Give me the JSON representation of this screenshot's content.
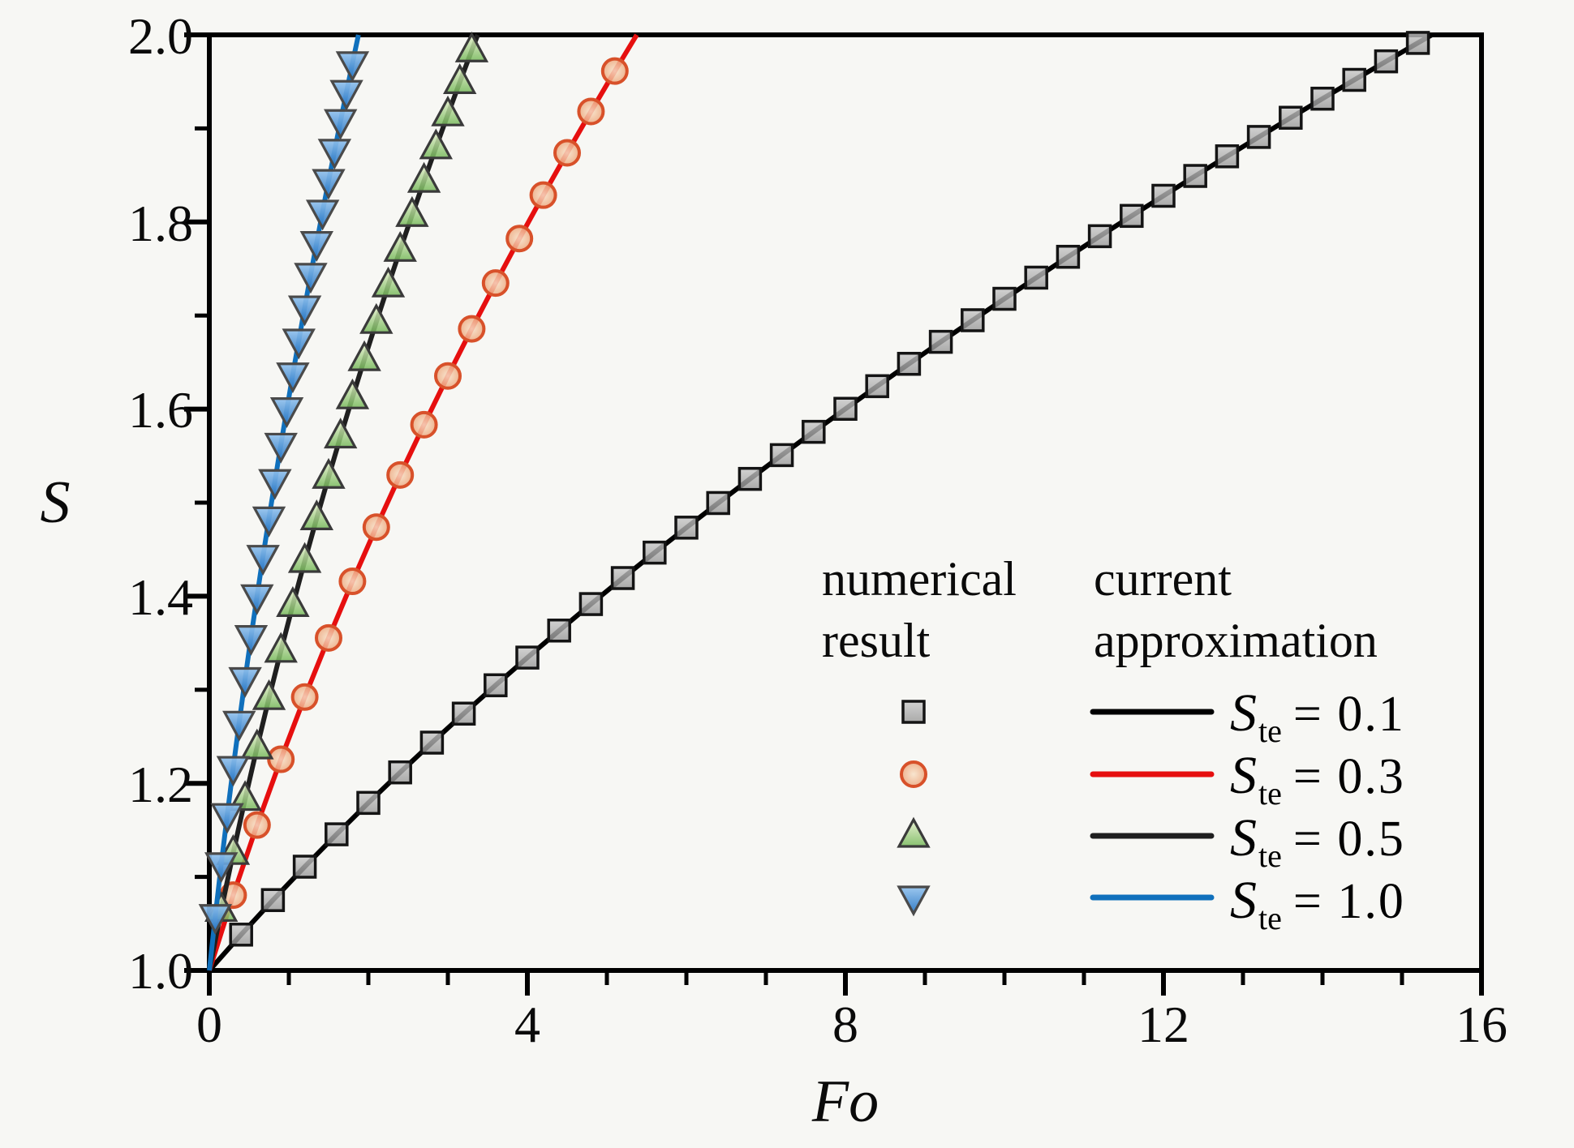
{
  "figure": {
    "background": "#f7f7f4"
  },
  "legend": {
    "col1_title_line1": "numerical",
    "col1_title_line2": "result",
    "col2_title_line1": "current",
    "col2_title_line2": "approximation",
    "entries": [
      {
        "symbol": "S",
        "subscript": "te",
        "eq": "= 0.1"
      },
      {
        "symbol": "S",
        "subscript": "te",
        "eq": "= 0.3"
      },
      {
        "symbol": "S",
        "subscript": "te",
        "eq": "= 0.5"
      },
      {
        "symbol": "S",
        "subscript": "te",
        "eq": "= 1.0"
      }
    ]
  },
  "chart_data": {
    "type": "line",
    "title": "",
    "xlabel": "Fo",
    "ylabel": "S",
    "xlim": [
      0,
      16
    ],
    "ylim": [
      1.0,
      2.0
    ],
    "grid": false,
    "legend_position": "inside-right",
    "x_major_ticks": [
      {
        "value": 0,
        "label": "0"
      },
      {
        "value": 4,
        "label": "4"
      },
      {
        "value": 8,
        "label": "8"
      },
      {
        "value": 12,
        "label": "12"
      },
      {
        "value": 16,
        "label": "16"
      }
    ],
    "x_minor_ticks": [
      1,
      2,
      3,
      5,
      6,
      7,
      9,
      10,
      11,
      13,
      14,
      15
    ],
    "y_major_ticks": [
      {
        "value": 1.0,
        "label": "1.0"
      },
      {
        "value": 1.2,
        "label": "1.2"
      },
      {
        "value": 1.4,
        "label": "1.4"
      },
      {
        "value": 1.6,
        "label": "1.6"
      },
      {
        "value": 1.8,
        "label": "1.8"
      },
      {
        "value": 2.0,
        "label": "2.0"
      }
    ],
    "y_minor_ticks": [
      1.1,
      1.3,
      1.5,
      1.7,
      1.9
    ],
    "series": [
      {
        "name": "Ste = 0.1",
        "ste_value": "0.1",
        "line_color": "#000000",
        "line_width": 6,
        "marker": "square",
        "marker_edge": "#141414",
        "fo_end": 15.375,
        "points": [
          [
            0.4,
            1.0383
          ],
          [
            0.8,
            1.0752
          ],
          [
            1.2,
            1.1109
          ],
          [
            1.6,
            1.1455
          ],
          [
            2.0,
            1.1791
          ],
          [
            2.4,
            1.2117
          ],
          [
            2.8,
            1.2435
          ],
          [
            3.2,
            1.2745
          ],
          [
            3.6,
            1.3048
          ],
          [
            4.0,
            1.3344
          ],
          [
            4.4,
            1.3633
          ],
          [
            4.8,
            1.3916
          ],
          [
            5.2,
            1.4194
          ],
          [
            5.6,
            1.4466
          ],
          [
            6.0,
            1.4733
          ],
          [
            6.4,
            1.4996
          ],
          [
            6.8,
            1.5254
          ],
          [
            7.2,
            1.5508
          ],
          [
            7.6,
            1.5757
          ],
          [
            8.0,
            1.6003
          ],
          [
            8.4,
            1.6245
          ],
          [
            8.8,
            1.6484
          ],
          [
            9.2,
            1.6719
          ],
          [
            9.6,
            1.695
          ],
          [
            10.0,
            1.7179
          ],
          [
            10.4,
            1.7405
          ],
          [
            10.8,
            1.7628
          ],
          [
            11.2,
            1.7848
          ],
          [
            11.6,
            1.8065
          ],
          [
            12.0,
            1.828
          ],
          [
            12.4,
            1.8492
          ],
          [
            12.8,
            1.8702
          ],
          [
            13.2,
            1.8909
          ],
          [
            13.6,
            1.9114
          ],
          [
            14.0,
            1.9318
          ],
          [
            14.4,
            1.9519
          ],
          [
            14.8,
            1.9717
          ],
          [
            15.2,
            1.9914
          ]
        ]
      },
      {
        "name": "Ste = 0.3",
        "ste_value": "0.3",
        "line_color": "#e60f0f",
        "line_width": 6,
        "marker": "circle",
        "marker_edge": "#d8512a",
        "fo_end": 5.375,
        "points": [
          [
            0.3,
            1.0805
          ],
          [
            0.6,
            1.1554
          ],
          [
            0.9,
            1.2257
          ],
          [
            1.2,
            1.2922
          ],
          [
            1.5,
            1.3554
          ],
          [
            1.8,
            1.4159
          ],
          [
            2.1,
            1.4738
          ],
          [
            2.4,
            1.5296
          ],
          [
            2.7,
            1.5833
          ],
          [
            3.0,
            1.6354
          ],
          [
            3.3,
            1.6858
          ],
          [
            3.6,
            1.7347
          ],
          [
            3.9,
            1.7823
          ],
          [
            4.2,
            1.8287
          ],
          [
            4.5,
            1.8739
          ],
          [
            4.8,
            1.9181
          ],
          [
            5.1,
            1.9613
          ]
        ]
      },
      {
        "name": "Ste = 0.5",
        "ste_value": "0.5",
        "line_color": "#1f1f1f",
        "line_width": 6,
        "marker": "triangle-up",
        "marker_edge": "#3a3a3a",
        "fo_end": 3.375,
        "points": [
          [
            0.15,
            1.0646
          ],
          [
            0.3,
            1.1255
          ],
          [
            0.45,
            1.1832
          ],
          [
            0.6,
            1.2383
          ],
          [
            0.75,
            1.291
          ],
          [
            0.9,
            1.3416
          ],
          [
            1.05,
            1.3905
          ],
          [
            1.2,
            1.4376
          ],
          [
            1.35,
            1.4832
          ],
          [
            1.5,
            1.5275
          ],
          [
            1.65,
            1.5706
          ],
          [
            1.8,
            1.6125
          ],
          [
            1.95,
            1.6533
          ],
          [
            2.1,
            1.6931
          ],
          [
            2.25,
            1.7321
          ],
          [
            2.4,
            1.7701
          ],
          [
            2.55,
            1.8074
          ],
          [
            2.7,
            1.8439
          ],
          [
            2.85,
            1.8797
          ],
          [
            3.0,
            1.9149
          ],
          [
            3.15,
            1.9494
          ],
          [
            3.3,
            1.9833
          ]
        ]
      },
      {
        "name": "Ste = 1.0",
        "ste_value": "1.0",
        "line_color": "#1070bc",
        "line_width": 6,
        "marker": "triangle-down",
        "marker_edge": "#4a4a4a",
        "fo_end": 1.875,
        "points": [
          [
            0.075,
            1.0583
          ],
          [
            0.15,
            1.1136
          ],
          [
            0.225,
            1.1662
          ],
          [
            0.3,
            1.2166
          ],
          [
            0.375,
            1.2649
          ],
          [
            0.45,
            1.3115
          ],
          [
            0.525,
            1.3565
          ],
          [
            0.6,
            1.4
          ],
          [
            0.675,
            1.4422
          ],
          [
            0.75,
            1.4832
          ],
          [
            0.825,
            1.5232
          ],
          [
            0.9,
            1.562
          ],
          [
            0.975,
            1.6
          ],
          [
            1.05,
            1.6371
          ],
          [
            1.125,
            1.6733
          ],
          [
            1.2,
            1.7088
          ],
          [
            1.275,
            1.7436
          ],
          [
            1.35,
            1.7776
          ],
          [
            1.425,
            1.8111
          ],
          [
            1.5,
            1.8439
          ],
          [
            1.575,
            1.8762
          ],
          [
            1.65,
            1.9079
          ],
          [
            1.725,
            1.9391
          ],
          [
            1.8,
            1.9698
          ]
        ]
      }
    ]
  }
}
